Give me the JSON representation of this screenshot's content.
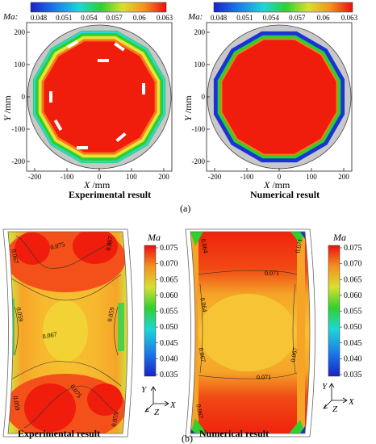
{
  "figure": {
    "a": {
      "label": "(a)",
      "colorbar": {
        "var": "Ma:",
        "ticks": [
          "0.048",
          "0.051",
          "0.054",
          "0.057",
          "0.06",
          "0.063"
        ]
      },
      "axes": {
        "ylabel_var": "Y",
        "ylabel_unit": "/mm",
        "xlabel_var": "X",
        "xlabel_unit": "/mm",
        "xticks": [
          "-200",
          "-100",
          "0",
          "100",
          "200"
        ],
        "yticks": [
          "200",
          "100",
          "0",
          "-100",
          "-200"
        ]
      },
      "left_caption": "Experimental result",
      "right_caption": "Numerical result"
    },
    "b": {
      "label": "(b)",
      "colorbar": {
        "var": "Ma",
        "ticks": [
          "0.075",
          "0.070",
          "0.065",
          "0.060",
          "0.055",
          "0.050",
          "0.045",
          "0.040",
          "0.035"
        ]
      },
      "triad": {
        "y": "Y",
        "x": "X",
        "z": "Z"
      },
      "left_caption": "Experimental result",
      "right_caption": "Numerical result",
      "left_contours": [
        "0.075",
        "0.067",
        "0.067",
        "0.075",
        "0.059",
        "0.059",
        "0.059",
        "0.067",
        "0.059"
      ],
      "right_contours": [
        "0.071",
        "0.064",
        "0.071",
        "0.064",
        "0.067",
        "0.067",
        "0.071",
        "0.067"
      ]
    }
  },
  "colors": {
    "red": "#f01c0c",
    "orange": "#f47a18",
    "yellow": "#f1e236",
    "green": "#2fcf2d",
    "cyan": "#2bd6dc",
    "blue": "#1a32d6",
    "grey": "#c8c8c8"
  }
}
